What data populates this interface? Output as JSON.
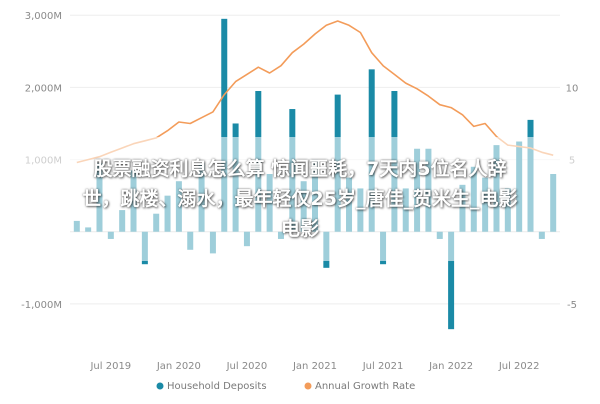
{
  "chart_data": {
    "type": "bar+line",
    "x_ticks": [
      "Jul 2019",
      "Jan 2020",
      "Jul 2020",
      "Jan 2021",
      "Jul 2021",
      "Jan 2022",
      "Jul 2022"
    ],
    "left_ticks": [
      "3,000M",
      "2,000M",
      "1,000M",
      "-1,000M"
    ],
    "left_tick_values": [
      3000,
      2000,
      1000,
      -1000
    ],
    "right_ticks": [
      "10",
      "5",
      "-5"
    ],
    "right_tick_values": [
      10,
      5,
      -5
    ],
    "ylim_left": [
      -1500,
      3100
    ],
    "ylim_right": [
      -7.5,
      15.5
    ],
    "series": [
      {
        "name": "Household Deposits",
        "color": "#1a8aa6",
        "x": [
          "2019-04",
          "2019-05",
          "2019-06",
          "2019-07",
          "2019-08",
          "2019-09",
          "2019-10",
          "2019-11",
          "2019-12",
          "2020-01",
          "2020-02",
          "2020-03",
          "2020-04",
          "2020-05",
          "2020-06",
          "2020-07",
          "2020-08",
          "2020-09",
          "2020-10",
          "2020-11",
          "2020-12",
          "2021-01",
          "2021-02",
          "2021-03",
          "2021-04",
          "2021-05",
          "2021-06",
          "2021-07",
          "2021-08",
          "2021-09",
          "2021-10",
          "2021-11",
          "2021-12",
          "2022-01",
          "2022-02",
          "2022-03",
          "2022-04",
          "2022-05",
          "2022-06",
          "2022-07",
          "2022-08",
          "2022-09",
          "2022-10"
        ],
        "values": [
          150,
          60,
          950,
          -100,
          300,
          850,
          -450,
          250,
          500,
          700,
          -250,
          950,
          -300,
          2950,
          1500,
          -200,
          1950,
          800,
          -100,
          1700,
          700,
          1000,
          -500,
          1900,
          750,
          600,
          2250,
          -450,
          1950,
          600,
          1150,
          1150,
          -100,
          -1350,
          650,
          900,
          750,
          1200,
          600,
          1250,
          1550,
          -100,
          800
        ]
      },
      {
        "name": "Annual Growth Rate",
        "color": "#f39c5a",
        "x": [
          "2019-04",
          "2019-05",
          "2019-06",
          "2019-07",
          "2019-08",
          "2019-09",
          "2019-10",
          "2019-11",
          "2019-12",
          "2020-01",
          "2020-02",
          "2020-03",
          "2020-04",
          "2020-05",
          "2020-06",
          "2020-07",
          "2020-08",
          "2020-09",
          "2020-10",
          "2020-11",
          "2020-12",
          "2021-01",
          "2021-02",
          "2021-03",
          "2021-04",
          "2021-05",
          "2021-06",
          "2021-07",
          "2021-08",
          "2021-09",
          "2021-10",
          "2021-11",
          "2021-12",
          "2022-01",
          "2022-02",
          "2022-03",
          "2022-04",
          "2022-05",
          "2022-06",
          "2022-07",
          "2022-08",
          "2022-09",
          "2022-10"
        ],
        "values": [
          4.8,
          5.0,
          5.2,
          5.5,
          5.8,
          6.1,
          6.3,
          6.5,
          7.0,
          7.6,
          7.5,
          7.9,
          8.3,
          9.5,
          10.4,
          10.9,
          11.4,
          11.0,
          11.5,
          12.4,
          13.0,
          13.7,
          14.3,
          14.6,
          14.3,
          13.8,
          12.4,
          11.5,
          10.9,
          10.3,
          9.9,
          9.4,
          8.8,
          8.6,
          8.1,
          7.3,
          7.5,
          6.6,
          6.0,
          5.9,
          5.8,
          5.5,
          5.3
        ]
      }
    ],
    "legend": [
      "Household Deposits",
      "Annual Growth Rate"
    ],
    "legend_position": "bottom",
    "grid": true
  },
  "banner": {
    "line1": "股票融资利息怎么算 惊闻噩耗，7天内5位名人辞",
    "line2": "世，跳楼、溺水，最年轻仅25岁_唐佳_贺米生_电影",
    "line3": "电影"
  }
}
